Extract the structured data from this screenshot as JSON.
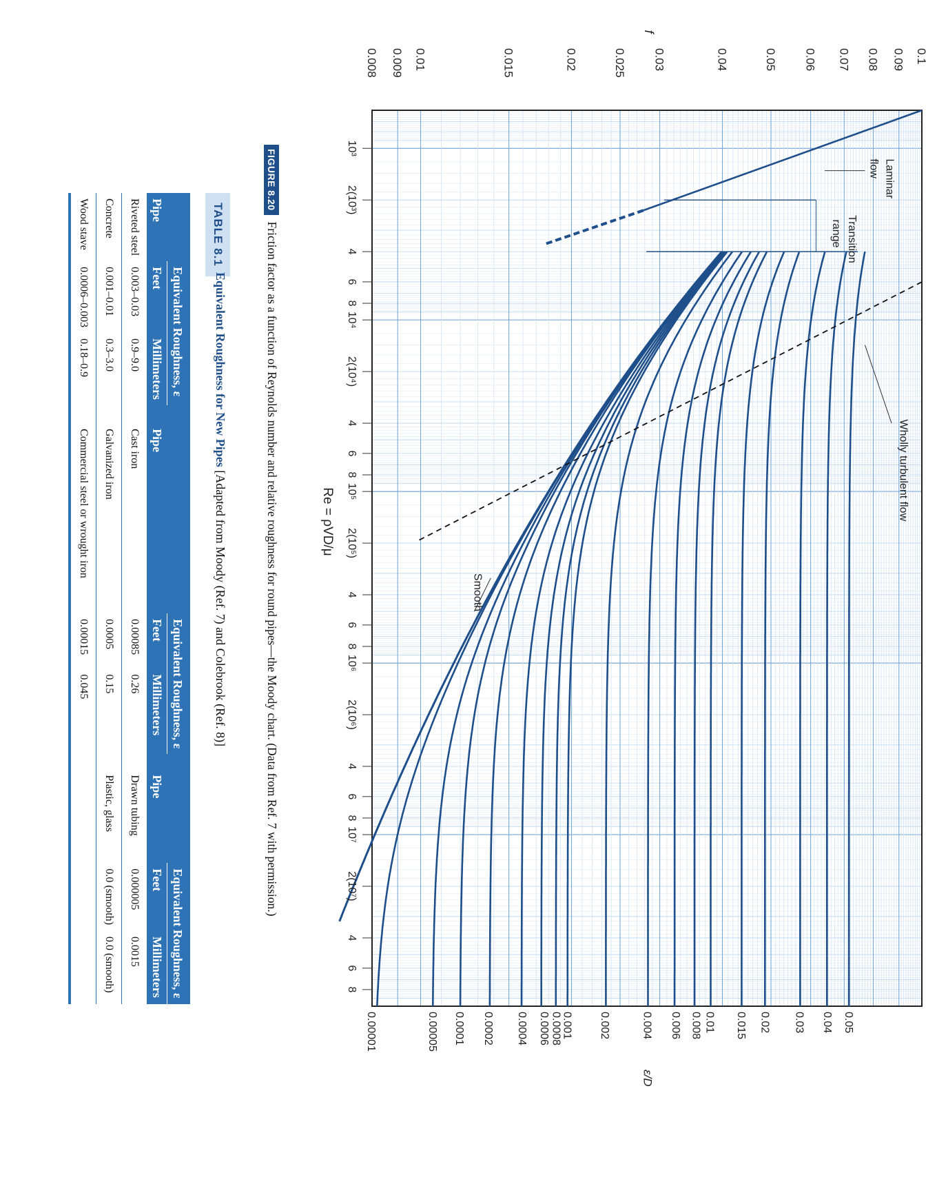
{
  "figure": {
    "label": "FIGURE 8.20",
    "caption": "Friction factor as a function of Reynolds number and relative roughness for round pipes—the Moody chart. (Data from Ref. 7 with permission.)"
  },
  "chart_data": {
    "type": "line",
    "title": "Moody chart",
    "xlabel": "Re = ρVD/μ",
    "ylabel": "f",
    "right_axis_label": "ε/D",
    "x_scale": "log",
    "y_scale": "log",
    "xlim": [
      600,
      100000000
    ],
    "ylim": [
      0.008,
      0.1
    ],
    "x_ticks": [
      {
        "value": 1000,
        "label": "10³"
      },
      {
        "value": 2000,
        "label": "2(10³)"
      },
      {
        "value": 4000,
        "label": "4"
      },
      {
        "value": 6000,
        "label": "6"
      },
      {
        "value": 8000,
        "label": "8"
      },
      {
        "value": 10000,
        "label": "10⁴"
      },
      {
        "value": 20000,
        "label": "2(10⁴)"
      },
      {
        "value": 40000,
        "label": "4"
      },
      {
        "value": 60000,
        "label": "6"
      },
      {
        "value": 80000,
        "label": "8"
      },
      {
        "value": 100000,
        "label": "10⁵"
      },
      {
        "value": 200000,
        "label": "2(10⁵)"
      },
      {
        "value": 400000,
        "label": "4"
      },
      {
        "value": 600000,
        "label": "6"
      },
      {
        "value": 800000,
        "label": "8"
      },
      {
        "value": 1000000,
        "label": "10⁶"
      },
      {
        "value": 2000000,
        "label": "2(10⁶)"
      },
      {
        "value": 4000000,
        "label": "4"
      },
      {
        "value": 6000000,
        "label": "6"
      },
      {
        "value": 8000000,
        "label": "8"
      },
      {
        "value": 10000000,
        "label": "10⁷"
      },
      {
        "value": 20000000,
        "label": "2(10⁷)"
      },
      {
        "value": 40000000,
        "label": "4"
      },
      {
        "value": 60000000,
        "label": "6"
      },
      {
        "value": 80000000,
        "label": "8"
      }
    ],
    "y_ticks": [
      {
        "value": 0.1,
        "label": "0.1"
      },
      {
        "value": 0.09,
        "label": "0.09"
      },
      {
        "value": 0.08,
        "label": "0.08"
      },
      {
        "value": 0.07,
        "label": "0.07"
      },
      {
        "value": 0.06,
        "label": "0.06"
      },
      {
        "value": 0.05,
        "label": "0.05"
      },
      {
        "value": 0.04,
        "label": "0.04"
      },
      {
        "value": 0.03,
        "label": "0.03"
      },
      {
        "value": 0.025,
        "label": "0.025"
      },
      {
        "value": 0.02,
        "label": "0.02"
      },
      {
        "value": 0.015,
        "label": "0.015"
      },
      {
        "value": 0.01,
        "label": "0.01"
      },
      {
        "value": 0.009,
        "label": "0.009"
      },
      {
        "value": 0.008,
        "label": "0.008"
      }
    ],
    "roughness_curves": [
      {
        "rel_roughness": 0.05,
        "label": "0.05",
        "f_rough": 0.0717
      },
      {
        "rel_roughness": 0.04,
        "label": "0.04",
        "f_rough": 0.065
      },
      {
        "rel_roughness": 0.03,
        "label": "0.03",
        "f_rough": 0.0572
      },
      {
        "rel_roughness": 0.02,
        "label": "0.02",
        "f_rough": 0.0488
      },
      {
        "rel_roughness": 0.015,
        "label": "0.015",
        "f_rough": 0.0438
      },
      {
        "rel_roughness": 0.01,
        "label": "0.01",
        "f_rough": 0.0379
      },
      {
        "rel_roughness": 0.008,
        "label": "0.008",
        "f_rough": 0.0356
      },
      {
        "rel_roughness": 0.006,
        "label": "0.006",
        "f_rough": 0.0324
      },
      {
        "rel_roughness": 0.004,
        "label": "0.004",
        "f_rough": 0.0284
      },
      {
        "rel_roughness": 0.002,
        "label": "0.002",
        "f_rough": 0.0234
      },
      {
        "rel_roughness": 0.001,
        "label": "0.001",
        "f_rough": 0.0197
      },
      {
        "rel_roughness": 0.0008,
        "label": "0.0008",
        "f_rough": 0.0187
      },
      {
        "rel_roughness": 0.0006,
        "label": "0.0006",
        "f_rough": 0.0177
      },
      {
        "rel_roughness": 0.0004,
        "label": "0.0004",
        "f_rough": 0.016
      },
      {
        "rel_roughness": 0.0002,
        "label": "0.0002",
        "f_rough": 0.0137
      },
      {
        "rel_roughness": 0.0001,
        "label": "0.0001",
        "f_rough": 0.012
      },
      {
        "rel_roughness": 5e-05,
        "label": "0.00005",
        "f_rough": 0.0106
      },
      {
        "rel_roughness": 1e-05,
        "label": "0.00001",
        "f_rough": 0.008
      }
    ],
    "laminar": {
      "equation": "f = 64/Re",
      "re_start": 600,
      "re_end_solid": 2300,
      "re_end_dashed": 3600
    },
    "smooth_curve": {
      "label": "Smooth",
      "equation": "Colebrook, ε/D = 0"
    },
    "wholly_turbulent_boundary": {
      "label": "Wholly turbulent flow",
      "style": "dashed"
    },
    "transition_range": {
      "label_line1": "Transition",
      "label_line2": "range",
      "re_low": 2000,
      "re_high": 4000
    },
    "laminar_label": {
      "line1": "Laminar",
      "line2": "flow"
    }
  },
  "table": {
    "label": "TABLE 8.1",
    "title": "Equivalent Roughness for New Pipes",
    "subtitle": "[Adapted from Moody (Ref. 7) and Colebrook (Ref. 8)]",
    "group_header": "Equivalent Roughness, ε",
    "col_pipe": "Pipe",
    "col_feet": "Feet",
    "col_mm": "Millimeters",
    "left": [
      {
        "pipe": "Riveted steel",
        "feet": "0.003–0.03",
        "mm": "0.9–9.0"
      },
      {
        "pipe": "Concrete",
        "feet": "0.001–0.01",
        "mm": "0.3–3.0"
      },
      {
        "pipe": "Wood stave",
        "feet": "0.0006–0.003",
        "mm": "0.18–0.9"
      }
    ],
    "middle": [
      {
        "pipe": "Cast iron",
        "feet": "0.00085",
        "mm": "0.26"
      },
      {
        "pipe": "Galvanized iron",
        "feet": "0.0005",
        "mm": "0.15"
      },
      {
        "pipe": "Commercial steel or wrought iron",
        "feet": "0.00015",
        "mm": "0.045"
      }
    ],
    "right": [
      {
        "pipe": "Drawn tubing",
        "feet": "0.000005",
        "mm": "0.0015"
      },
      {
        "pipe": "Plastic, glass",
        "feet": "0.0 (smooth)",
        "mm": "0.0 (smooth)"
      },
      {
        "pipe": "",
        "feet": "",
        "mm": ""
      }
    ]
  }
}
